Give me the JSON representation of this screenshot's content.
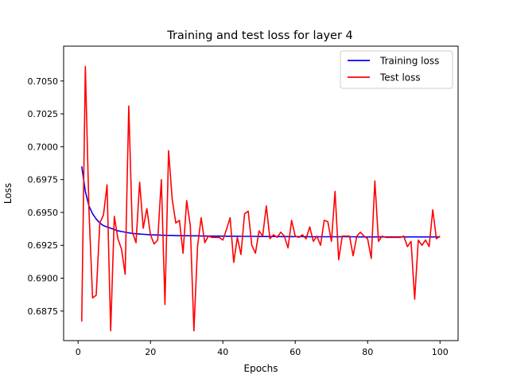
{
  "chart_data": {
    "type": "line",
    "title": "Training and test loss for layer 4",
    "xlabel": "Epochs",
    "ylabel": "Loss",
    "xlim": [
      -4,
      105
    ],
    "ylim": [
      0.68525,
      0.70765
    ],
    "x_ticks": [
      0,
      20,
      40,
      60,
      80,
      100
    ],
    "y_ticks": [
      0.6875,
      0.69,
      0.6925,
      0.695,
      0.6975,
      0.7,
      0.7025,
      0.705
    ],
    "y_tick_labels": [
      "0.6875",
      "0.6900",
      "0.6925",
      "0.6950",
      "0.6975",
      "0.7000",
      "0.7025",
      "0.7050"
    ],
    "grid": false,
    "legend_position": "top-right",
    "x": [
      1,
      2,
      3,
      4,
      5,
      6,
      7,
      8,
      9,
      10,
      11,
      12,
      13,
      14,
      15,
      16,
      17,
      18,
      19,
      20,
      21,
      22,
      23,
      24,
      25,
      26,
      27,
      28,
      29,
      30,
      31,
      32,
      33,
      34,
      35,
      36,
      37,
      38,
      39,
      40,
      41,
      42,
      43,
      44,
      45,
      46,
      47,
      48,
      49,
      50,
      51,
      52,
      53,
      54,
      55,
      56,
      57,
      58,
      59,
      60,
      61,
      62,
      63,
      64,
      65,
      66,
      67,
      68,
      69,
      70,
      71,
      72,
      73,
      74,
      75,
      76,
      77,
      78,
      79,
      80,
      81,
      82,
      83,
      84,
      85,
      86,
      87,
      88,
      89,
      90,
      91,
      92,
      93,
      94,
      95,
      96,
      97,
      98,
      99,
      100
    ],
    "series": [
      {
        "name": "Training loss",
        "color": "#0000ff",
        "values": [
          0.6985,
          0.6966,
          0.6955,
          0.6949,
          0.6945,
          0.6942,
          0.694,
          0.6939,
          0.6938,
          0.6937,
          0.6936,
          0.69355,
          0.6935,
          0.69345,
          0.6934,
          0.69338,
          0.69336,
          0.69334,
          0.69332,
          0.6933,
          0.69329,
          0.69328,
          0.69327,
          0.69326,
          0.69325,
          0.69325,
          0.69324,
          0.69324,
          0.69323,
          0.69323,
          0.69322,
          0.69322,
          0.69322,
          0.69321,
          0.69321,
          0.69321,
          0.6932,
          0.6932,
          0.6932,
          0.6932,
          0.69319,
          0.69319,
          0.69319,
          0.69319,
          0.69318,
          0.69318,
          0.69318,
          0.69318,
          0.69318,
          0.69317,
          0.69317,
          0.69317,
          0.69317,
          0.69317,
          0.69317,
          0.69316,
          0.69316,
          0.69316,
          0.69316,
          0.69316,
          0.69316,
          0.69316,
          0.69316,
          0.69315,
          0.69315,
          0.69315,
          0.69315,
          0.69315,
          0.69315,
          0.69315,
          0.69315,
          0.69315,
          0.69315,
          0.69315,
          0.69315,
          0.69315,
          0.69314,
          0.69314,
          0.69314,
          0.69314,
          0.69314,
          0.69314,
          0.69314,
          0.69314,
          0.69314,
          0.69314,
          0.69314,
          0.69314,
          0.69314,
          0.69314,
          0.69314,
          0.69314,
          0.69314,
          0.69314,
          0.69314,
          0.69314,
          0.69314,
          0.69314,
          0.69314,
          0.69314
        ]
      },
      {
        "name": "Test loss",
        "color": "#ff0000",
        "values": [
          0.6867,
          0.7061,
          0.6952,
          0.6885,
          0.6887,
          0.6942,
          0.6948,
          0.6971,
          0.686,
          0.6947,
          0.693,
          0.6922,
          0.6903,
          0.7031,
          0.6935,
          0.6927,
          0.6973,
          0.6938,
          0.6953,
          0.6933,
          0.6926,
          0.6929,
          0.6975,
          0.688,
          0.6997,
          0.696,
          0.6942,
          0.6944,
          0.6919,
          0.6959,
          0.694,
          0.686,
          0.6924,
          0.6946,
          0.6927,
          0.6932,
          0.6931,
          0.6931,
          0.6931,
          0.6929,
          0.6937,
          0.6946,
          0.6912,
          0.6931,
          0.6918,
          0.6949,
          0.6951,
          0.6925,
          0.6919,
          0.6936,
          0.6932,
          0.6955,
          0.693,
          0.6933,
          0.6931,
          0.6935,
          0.6932,
          0.6923,
          0.6944,
          0.6932,
          0.6931,
          0.6933,
          0.693,
          0.6939,
          0.6928,
          0.6932,
          0.6925,
          0.6944,
          0.6943,
          0.6928,
          0.6966,
          0.6914,
          0.6932,
          0.6932,
          0.6932,
          0.6917,
          0.6932,
          0.6935,
          0.6932,
          0.693,
          0.6915,
          0.6974,
          0.6928,
          0.6932,
          0.6931,
          0.6931,
          0.6931,
          0.6931,
          0.6931,
          0.6932,
          0.6924,
          0.6928,
          0.6884,
          0.6929,
          0.6925,
          0.6929,
          0.6924,
          0.6952,
          0.693,
          0.6932
        ]
      }
    ]
  }
}
